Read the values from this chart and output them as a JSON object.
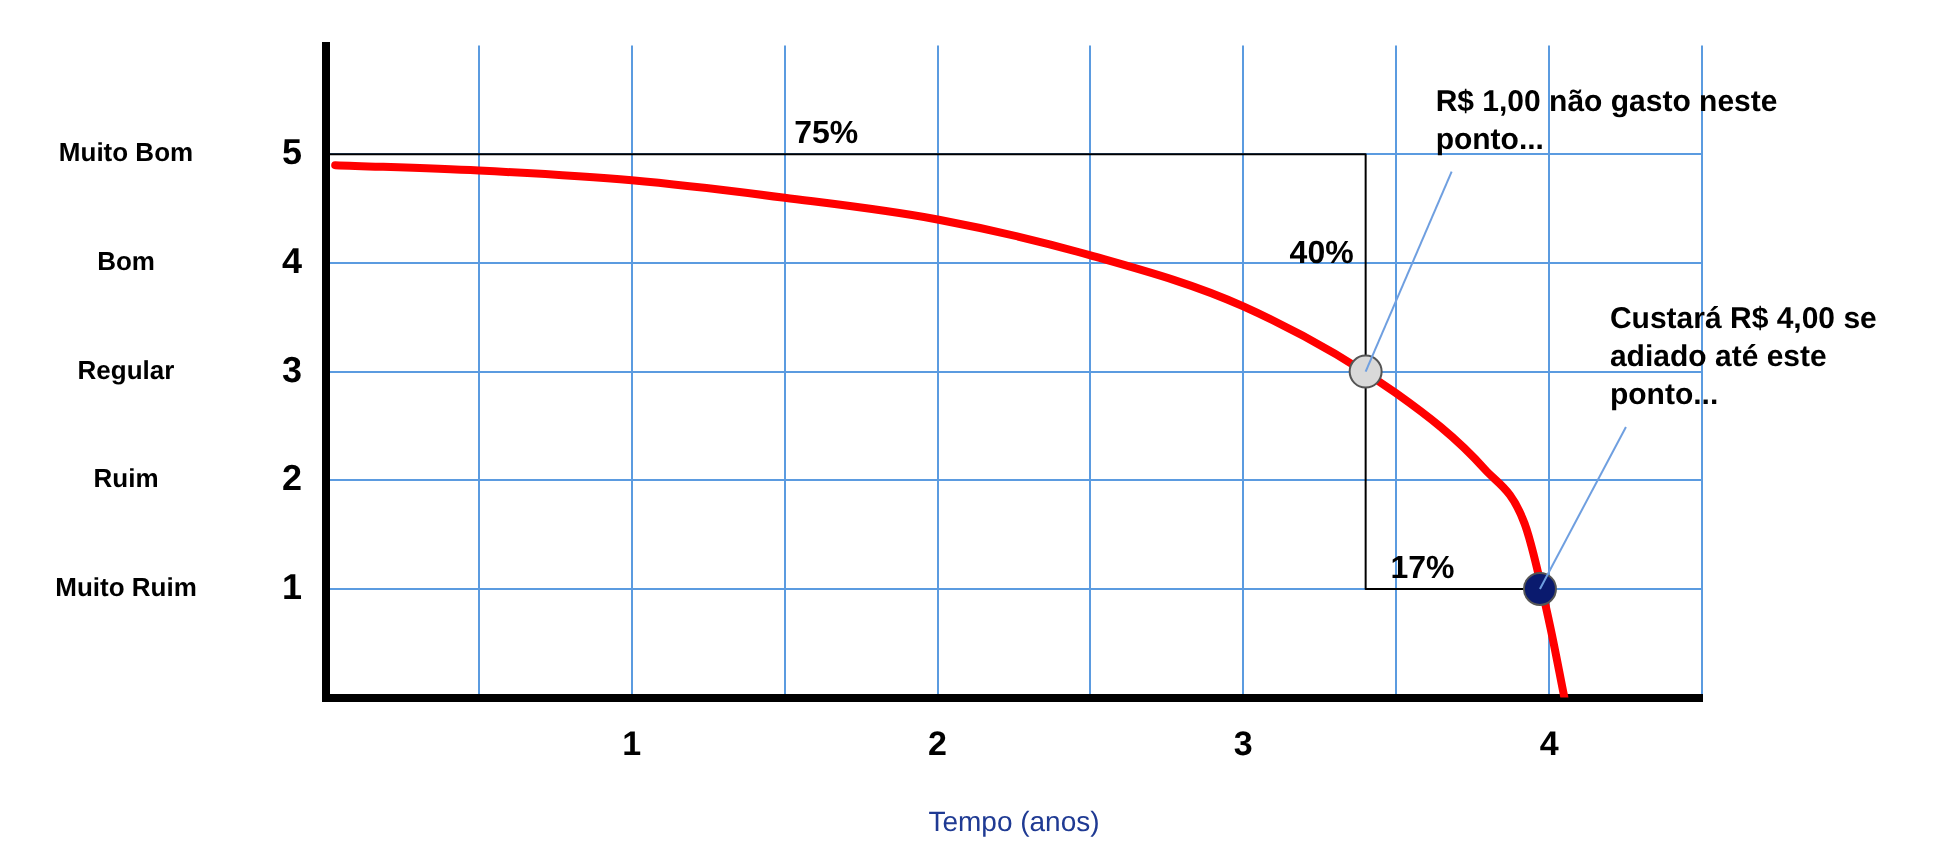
{
  "chart_data": {
    "type": "line",
    "xlabel": "Tempo (anos)",
    "xlim": [
      0,
      4.5
    ],
    "xticks": [
      {
        "value": 0.5,
        "label": null
      },
      1,
      {
        "value": 1.5,
        "label": null
      },
      2,
      {
        "value": 2.5,
        "label": null
      },
      3,
      {
        "value": 3.5,
        "label": null
      },
      4,
      {
        "value": 4.5,
        "label": null
      }
    ],
    "ylim": [
      0,
      6
    ],
    "yticks": [
      1,
      2,
      3,
      4,
      5
    ],
    "grid": true,
    "legend": false,
    "series": [
      {
        "color": "#ff0000",
        "marker": "none",
        "x": [
          0.03,
          0.5,
          1,
          1.5,
          2,
          2.5,
          3,
          3.5,
          3.79,
          3.92,
          4,
          4.05
        ],
        "values": [
          4.9,
          4.85,
          4.76,
          4.6,
          4.4,
          4.07,
          3.6,
          2.8,
          2.1,
          1.6,
          0.7,
          0
        ]
      },
      {
        "color": "#000000",
        "marker": "none",
        "x": [
          0,
          3.4,
          3.4,
          3.97
        ],
        "values": [
          5,
          5,
          1,
          1
        ]
      },
      {
        "type": "scatter",
        "colors": [
          "#d9d9d9",
          "#0a1a6e"
        ],
        "marker": "circle",
        "x": [
          3.4,
          3.97
        ],
        "values": [
          3,
          1
        ]
      }
    ],
    "annotations": [
      "Muito Bom",
      "Bom",
      "Regular",
      "Ruim",
      "Muito Ruim",
      {
        "text": "75%",
        "x": 1.78,
        "y": 5
      },
      {
        "text": "40%",
        "x": 3.4,
        "y": 3.9
      },
      {
        "text": "17%",
        "x": 3.73,
        "y": 1
      },
      {
        "text": "R$ 1,00 não gasto neste ponto...",
        "x": 3.4,
        "y": 3
      },
      {
        "text": "Custará R$ 4,00 se adiado até este ponto...",
        "x": 3.97,
        "y": 1
      }
    ]
  }
}
